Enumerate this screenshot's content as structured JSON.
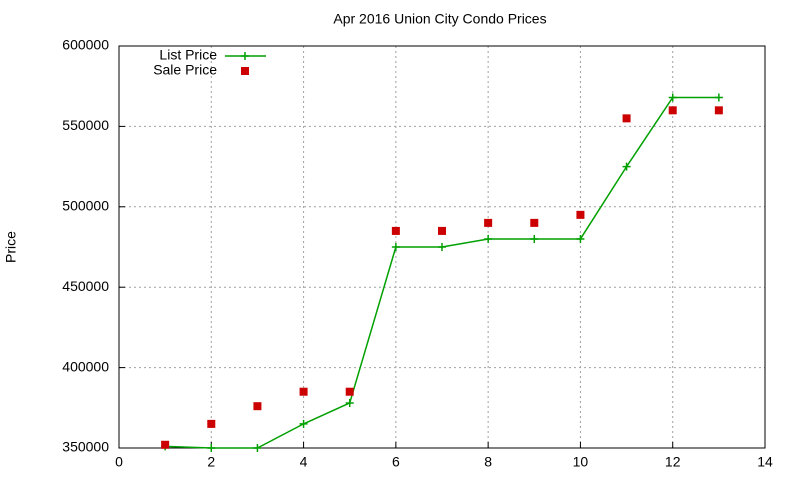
{
  "chart_data": {
    "type": "line",
    "title": "Apr 2016 Union City Condo Prices",
    "y_label": "Price",
    "x": [
      1,
      2,
      3,
      4,
      5,
      6,
      7,
      8,
      9,
      10,
      11,
      12,
      13
    ],
    "series": [
      {
        "name": "List Price",
        "color": "#00a000",
        "mode": "lines+markers",
        "values": [
          351000,
          350000,
          350000,
          365000,
          378000,
          475000,
          475000,
          480000,
          480000,
          480000,
          525000,
          568000,
          568000
        ]
      },
      {
        "name": "Sale Price",
        "color": "#cc0000",
        "mode": "markers",
        "values": [
          352000,
          365000,
          376000,
          385000,
          385000,
          485000,
          485000,
          490000,
          490000,
          495000,
          555000,
          560000,
          560000
        ]
      }
    ],
    "xlim": [
      0,
      14
    ],
    "xticks": [
      0,
      2,
      4,
      6,
      8,
      10,
      12,
      14
    ],
    "ylim": [
      350000,
      600000
    ],
    "yticks": [
      350000,
      400000,
      450000,
      500000,
      550000,
      600000
    ],
    "grid": true,
    "legend": "top-left"
  }
}
